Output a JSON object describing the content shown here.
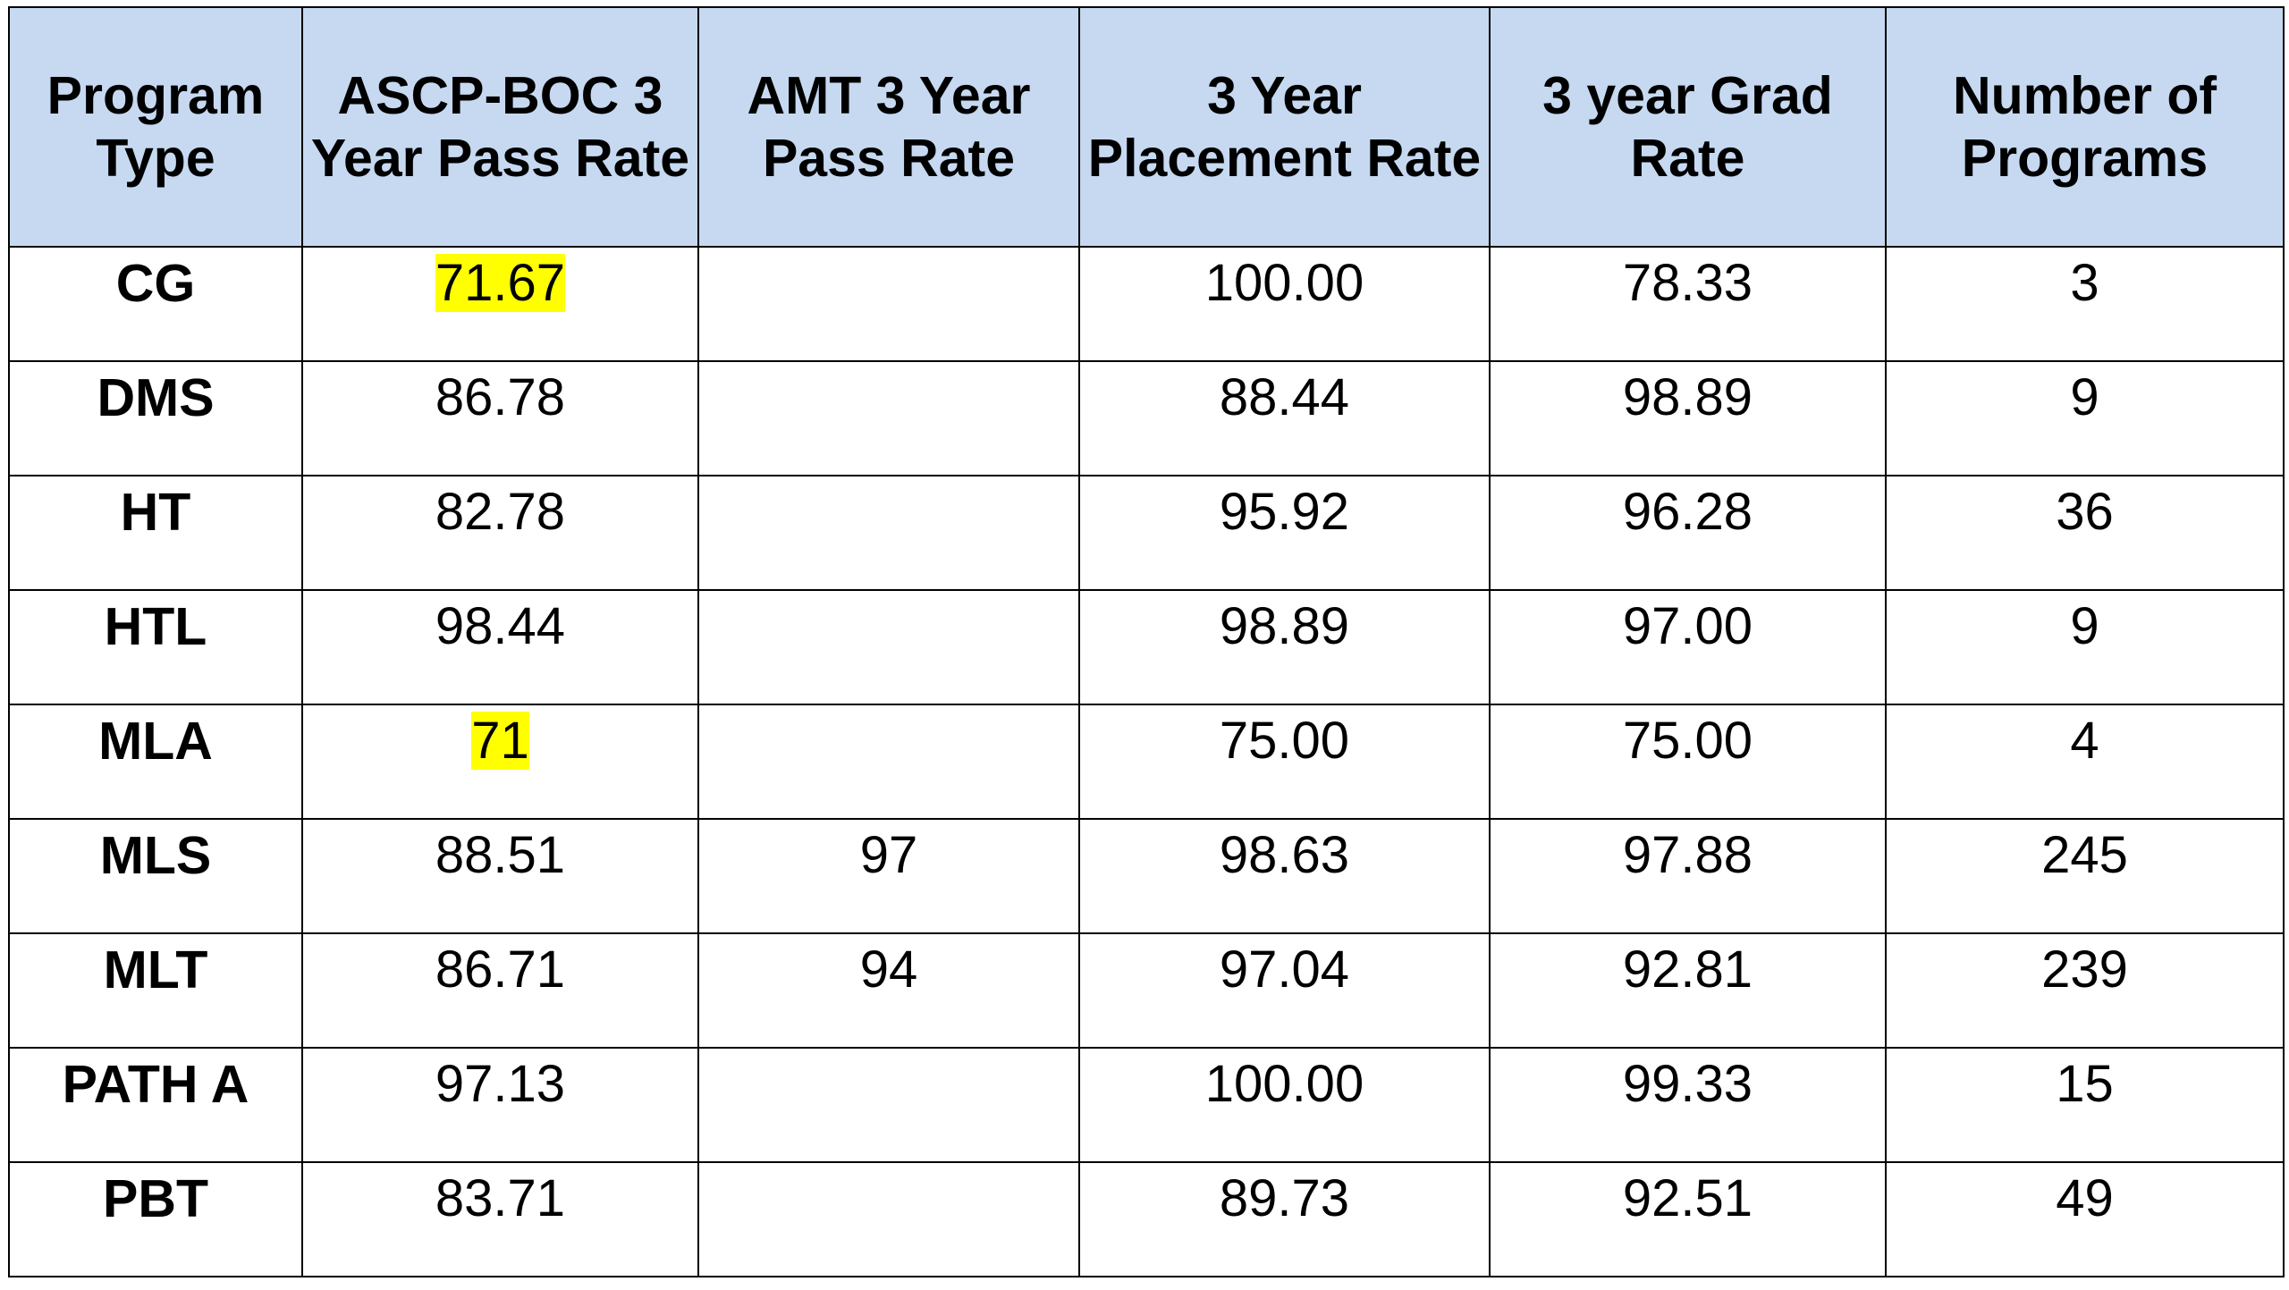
{
  "table": {
    "headers": {
      "program_type": "Program Type",
      "ascp_boc": "ASCP-BOC 3 Year Pass Rate",
      "amt": "AMT 3 Year Pass Rate",
      "placement": "3 Year Placement Rate",
      "grad": "3 year Grad Rate",
      "programs": "Number of Programs"
    },
    "rows": [
      {
        "type": "CG",
        "ascp_boc": "71.67",
        "amt": "",
        "placement": "100.00",
        "grad": "78.33",
        "programs": "3"
      },
      {
        "type": "DMS",
        "ascp_boc": "86.78",
        "amt": "",
        "placement": "88.44",
        "grad": "98.89",
        "programs": "9"
      },
      {
        "type": "HT",
        "ascp_boc": "82.78",
        "amt": "",
        "placement": "95.92",
        "grad": "96.28",
        "programs": "36"
      },
      {
        "type": "HTL",
        "ascp_boc": "98.44",
        "amt": "",
        "placement": "98.89",
        "grad": "97.00",
        "programs": "9"
      },
      {
        "type": "MLA",
        "ascp_boc": "71",
        "amt": "",
        "placement": "75.00",
        "grad": "75.00",
        "programs": "4"
      },
      {
        "type": "MLS",
        "ascp_boc": "88.51",
        "amt": "97",
        "placement": "98.63",
        "grad": "97.88",
        "programs": "245"
      },
      {
        "type": "MLT",
        "ascp_boc": "86.71",
        "amt": "94",
        "placement": "97.04",
        "grad": "92.81",
        "programs": "239"
      },
      {
        "type": "PATH A",
        "ascp_boc": "97.13",
        "amt": "",
        "placement": "100.00",
        "grad": "99.33",
        "programs": "15"
      },
      {
        "type": "PBT",
        "ascp_boc": "83.71",
        "amt": "",
        "placement": "89.73",
        "grad": "92.51",
        "programs": "49"
      }
    ]
  },
  "colors": {
    "header_bg": "#c6d9f1",
    "highlight": "#ffff00",
    "border": "#000000"
  }
}
